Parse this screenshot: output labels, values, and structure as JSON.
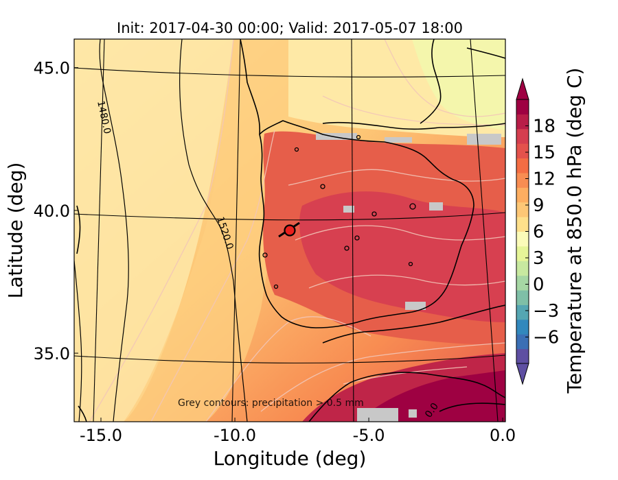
{
  "title": "Init: 2017-04-30 00:00; Valid: 2017-05-07 18:00",
  "map": {
    "lon_range": [
      -16.0,
      0.1
    ],
    "lat_range": [
      32.6,
      46.0
    ],
    "xlabel": "Longitude (deg)",
    "ylabel": "Latitude (deg)",
    "xticks": [
      {
        "value": -15.0,
        "label": "-15.0"
      },
      {
        "value": -10.0,
        "label": "-10.0"
      },
      {
        "value": -5.0,
        "label": "-5.0"
      },
      {
        "value": 0.0,
        "label": "0.0"
      }
    ],
    "yticks": [
      {
        "value": 35.0,
        "label": "35.0"
      },
      {
        "value": 40.0,
        "label": "40.0"
      },
      {
        "value": 45.0,
        "label": "45.0"
      }
    ],
    "contour_labels": [
      "1480.0",
      "1520.0",
      "0.0"
    ],
    "annotation": "Grey contours: precipitation > 0.5 mm",
    "marker": {
      "lon": -7.6,
      "lat": 39.3,
      "color": "#e8201e"
    }
  },
  "colorbar": {
    "label": "Temperature at 850.0 hPa (deg C)",
    "range": [
      -9,
      21
    ],
    "ticks": [
      {
        "value": -6,
        "label": "−6"
      },
      {
        "value": -3,
        "label": "−3"
      },
      {
        "value": 0,
        "label": "0"
      },
      {
        "value": 3,
        "label": "3"
      },
      {
        "value": 6,
        "label": "6"
      },
      {
        "value": 9,
        "label": "9"
      },
      {
        "value": 12,
        "label": "12"
      },
      {
        "value": 15,
        "label": "15"
      },
      {
        "value": 18,
        "label": "18"
      }
    ],
    "colors": [
      "#5e4fa2",
      "#3b6fb5",
      "#3288bd",
      "#55a6b2",
      "#7fbfa7",
      "#a6d7a4",
      "#c8e9a0",
      "#e6f598",
      "#fbfbb9",
      "#fee08b",
      "#fdc776",
      "#fdae61",
      "#f88d52",
      "#f46d43",
      "#e4524c",
      "#d53e4f",
      "#b81d48",
      "#9e0142"
    ]
  }
}
